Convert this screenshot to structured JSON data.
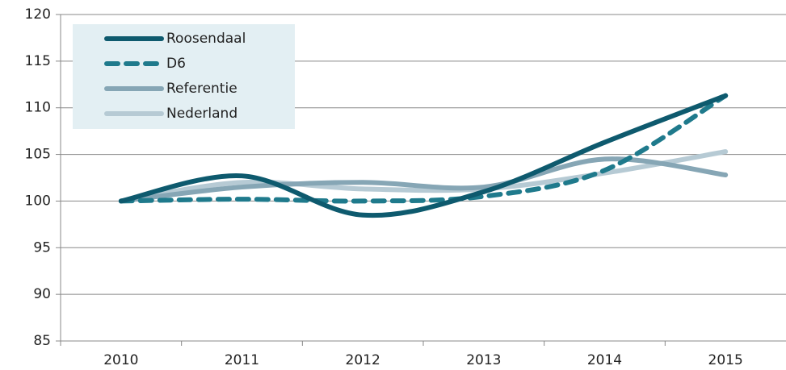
{
  "chart_data": {
    "type": "line",
    "categories": [
      "2010",
      "2011",
      "2012",
      "2013",
      "2014",
      "2015"
    ],
    "series": [
      {
        "name": "Roosendaal",
        "color": "#0e5a6e",
        "dash": false,
        "values": [
          100,
          102.7,
          98.5,
          101,
          106.3,
          111.3
        ]
      },
      {
        "name": "D6",
        "color": "#1f7a8c",
        "dash": true,
        "values": [
          100,
          100.2,
          100,
          100.5,
          103.3,
          111.3
        ]
      },
      {
        "name": "Referentie",
        "color": "#86a6b5",
        "dash": false,
        "values": [
          100,
          101.5,
          102,
          101.5,
          104.5,
          102.8
        ]
      },
      {
        "name": "Nederland",
        "color": "#b6cad4",
        "dash": false,
        "values": [
          100,
          102,
          101.3,
          101.3,
          103,
          105.3
        ]
      }
    ],
    "ylim": [
      85,
      120
    ],
    "yticks": [
      85,
      90,
      95,
      100,
      105,
      110,
      115,
      120
    ],
    "grid": true,
    "legend": "top-left",
    "smooth": true
  }
}
